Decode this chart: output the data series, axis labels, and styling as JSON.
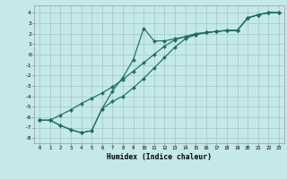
{
  "xlabel": "Humidex (Indice chaleur)",
  "bg_color": "#c5e8e8",
  "grid_color": "#a8cccc",
  "line_color": "#1a7060",
  "xlim": [
    -0.5,
    23.5
  ],
  "ylim": [
    -8.5,
    4.7
  ],
  "xticks": [
    0,
    1,
    2,
    3,
    4,
    5,
    6,
    7,
    8,
    9,
    10,
    11,
    12,
    13,
    14,
    15,
    16,
    17,
    18,
    19,
    20,
    21,
    22,
    23
  ],
  "yticks": [
    -8,
    -7,
    -6,
    -5,
    -4,
    -3,
    -2,
    -1,
    0,
    1,
    2,
    3,
    4
  ],
  "line1_x": [
    0,
    1,
    2,
    3,
    4,
    5,
    6,
    7,
    8,
    9,
    10,
    11,
    12,
    13,
    14,
    15,
    16,
    17,
    18,
    19,
    20,
    21,
    22,
    23
  ],
  "line1_y": [
    -6.3,
    -6.3,
    -6.8,
    -7.2,
    -7.5,
    -7.3,
    -5.2,
    -3.5,
    -2.2,
    -0.5,
    2.5,
    1.3,
    1.3,
    1.5,
    1.7,
    2.0,
    2.1,
    2.2,
    2.3,
    2.3,
    3.5,
    3.8,
    4.0,
    4.0
  ],
  "line2_x": [
    0,
    1,
    2,
    3,
    4,
    5,
    6,
    7,
    8,
    9,
    10,
    11,
    12,
    13,
    14,
    15,
    16,
    17,
    18,
    19,
    20,
    21,
    22,
    23
  ],
  "line2_y": [
    -6.3,
    -6.3,
    -6.8,
    -7.2,
    -7.5,
    -7.3,
    -5.2,
    -4.5,
    -4.0,
    -3.2,
    -2.3,
    -1.3,
    -0.3,
    0.7,
    1.5,
    1.9,
    2.1,
    2.2,
    2.3,
    2.3,
    3.5,
    3.8,
    4.0,
    4.0
  ],
  "line3_x": [
    0,
    1,
    2,
    3,
    4,
    5,
    6,
    7,
    8,
    9,
    10,
    11,
    12,
    13,
    14,
    15,
    16,
    17,
    18,
    19,
    20,
    21,
    22,
    23
  ],
  "line3_y": [
    -6.3,
    -6.3,
    -5.8,
    -5.3,
    -4.7,
    -4.2,
    -3.7,
    -3.1,
    -2.4,
    -1.6,
    -0.8,
    0.0,
    0.8,
    1.4,
    1.7,
    1.9,
    2.1,
    2.2,
    2.3,
    2.3,
    3.5,
    3.8,
    4.0,
    4.0
  ]
}
